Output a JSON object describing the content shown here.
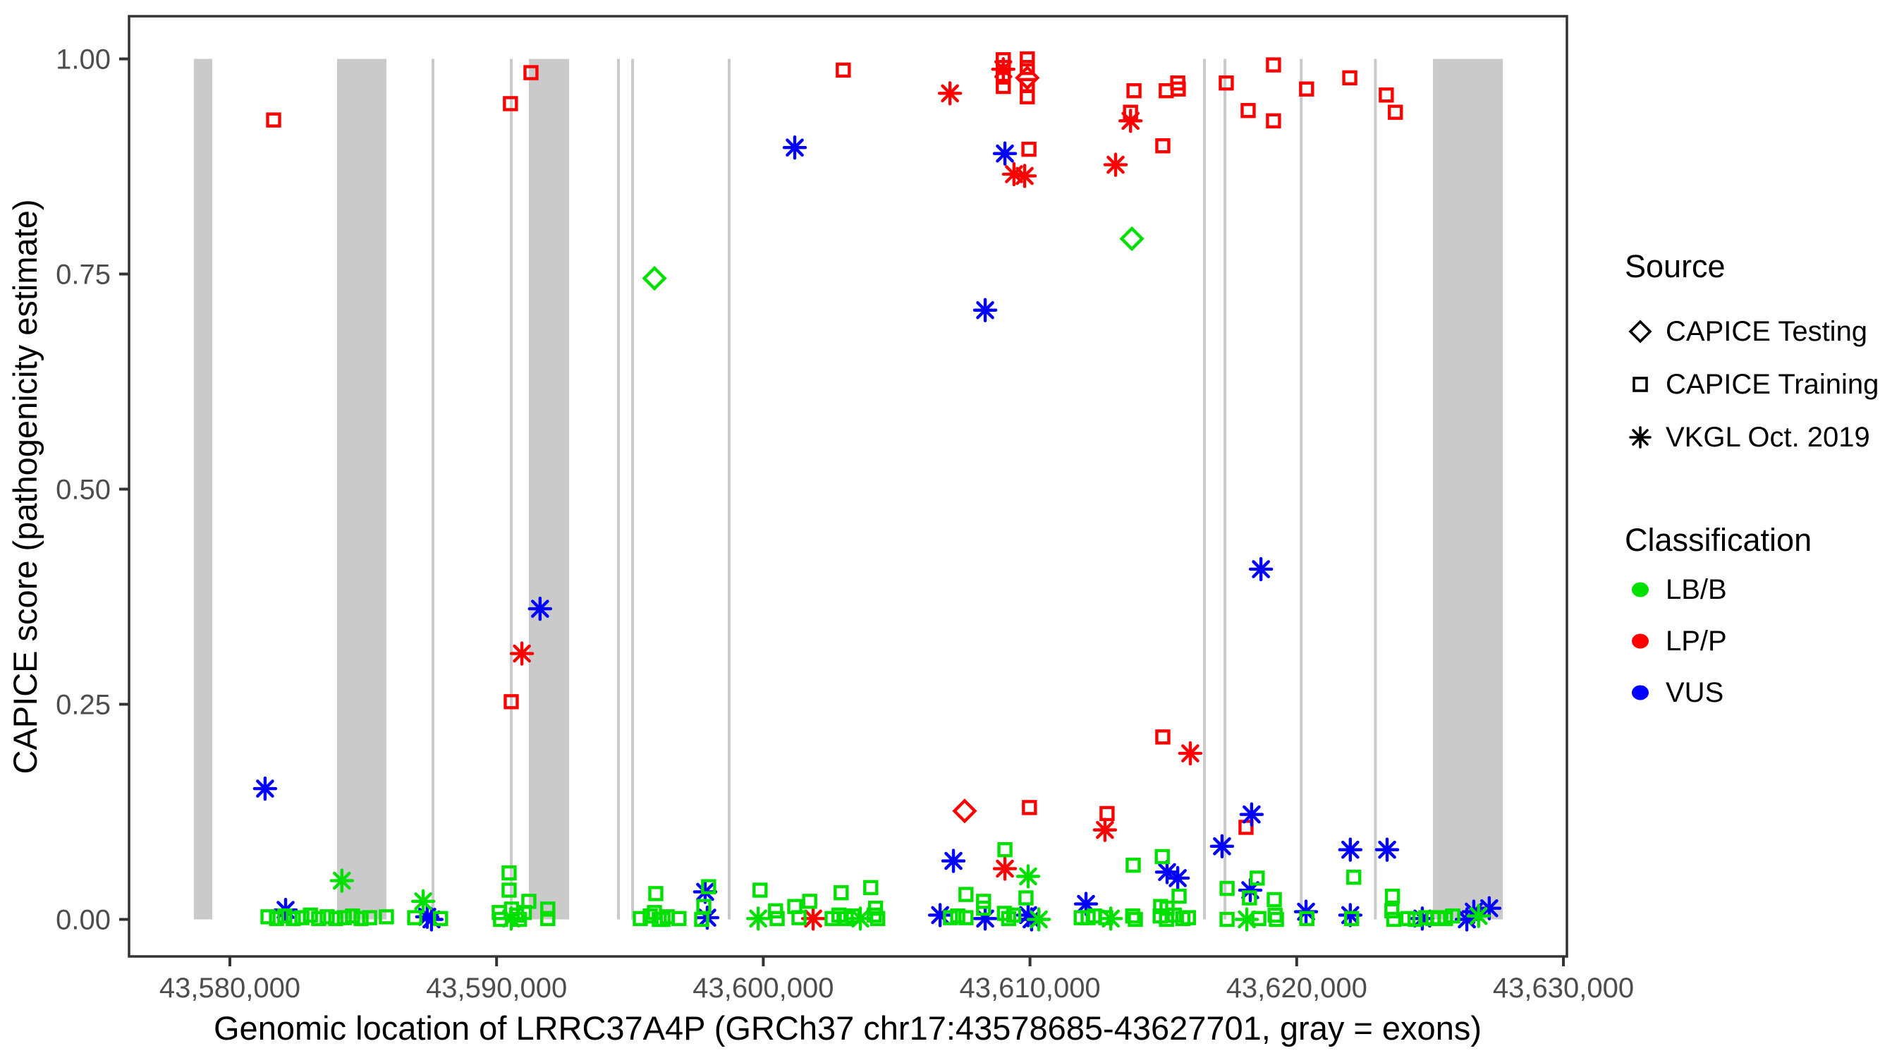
{
  "chart_data": {
    "type": "scatter",
    "title": "",
    "xlabel": "Genomic location of LRRC37A4P (GRCh37 chr17:43578685-43627701, gray = exons)",
    "ylabel": "CAPICE score (pathogenicity estimate)",
    "x_domain": [
      43576220,
      43630132
    ],
    "y_domain": [
      -0.043,
      1.0496
    ],
    "grid": "off",
    "x_ticks": [
      {
        "v": 43580000,
        "label": "43,580,000"
      },
      {
        "v": 43590000,
        "label": "43,590,000"
      },
      {
        "v": 43600000,
        "label": "43,600,000"
      },
      {
        "v": 43610000,
        "label": "43,610,000"
      },
      {
        "v": 43620000,
        "label": "43,620,000"
      },
      {
        "v": 43630000,
        "label": "43,630,000"
      }
    ],
    "y_ticks": [
      {
        "v": 0.0,
        "label": "0.00"
      },
      {
        "v": 0.25,
        "label": "0.25"
      },
      {
        "v": 0.5,
        "label": "0.50"
      },
      {
        "v": 0.75,
        "label": "0.75"
      },
      {
        "v": 1.0,
        "label": "1.00"
      }
    ],
    "exons_note": "gray vertical bands = exons, [start_bp, end_bp]",
    "exons": [
      [
        43578650,
        43579340
      ],
      [
        43584020,
        43585870
      ],
      [
        43587615,
        43587615
      ],
      [
        43590550,
        43590550
      ],
      [
        43591210,
        43592720
      ],
      [
        43594570,
        43594570
      ],
      [
        43595100,
        43595100
      ],
      [
        43598720,
        43598720
      ],
      [
        43616540,
        43616540
      ],
      [
        43617310,
        43617310
      ],
      [
        43620170,
        43620170
      ],
      [
        43622950,
        43622950
      ],
      [
        43625110,
        43627730
      ]
    ],
    "point_format": [
      "bp",
      "score",
      "classification_code",
      "source_code"
    ],
    "classification_codes": {
      "g": "LB/B",
      "r": "LP/P",
      "b": "VUS"
    },
    "source_codes": {
      "sq": "CAPICE Training",
      "di": "CAPICE Testing",
      "as": "VKGL Oct. 2019"
    },
    "points": [
      [
        43581640,
        0.929,
        "r",
        "sq"
      ],
      [
        43590520,
        0.948,
        "r",
        "sq"
      ],
      [
        43591290,
        0.984,
        "r",
        "sq"
      ],
      [
        43603000,
        0.987,
        "r",
        "sq"
      ],
      [
        43609000,
        0.999,
        "r",
        "sq"
      ],
      [
        43609000,
        0.99,
        "r",
        "sq"
      ],
      [
        43609000,
        0.979,
        "r",
        "sq"
      ],
      [
        43609000,
        0.968,
        "r",
        "sq"
      ],
      [
        43609900,
        1.0,
        "r",
        "sq"
      ],
      [
        43609900,
        0.99,
        "r",
        "sq"
      ],
      [
        43609900,
        0.969,
        "r",
        "sq"
      ],
      [
        43609900,
        0.956,
        "r",
        "sq"
      ],
      [
        43609960,
        0.895,
        "r",
        "sq"
      ],
      [
        43613900,
        0.963,
        "r",
        "sq"
      ],
      [
        43613770,
        0.938,
        "r",
        "sq"
      ],
      [
        43615110,
        0.963,
        "r",
        "sq"
      ],
      [
        43615540,
        0.972,
        "r",
        "sq"
      ],
      [
        43615560,
        0.965,
        "r",
        "sq"
      ],
      [
        43614980,
        0.899,
        "r",
        "sq"
      ],
      [
        43617360,
        0.972,
        "r",
        "sq"
      ],
      [
        43619130,
        0.993,
        "r",
        "sq"
      ],
      [
        43618180,
        0.94,
        "r",
        "sq"
      ],
      [
        43619130,
        0.928,
        "r",
        "sq"
      ],
      [
        43620370,
        0.965,
        "r",
        "sq"
      ],
      [
        43621990,
        0.978,
        "r",
        "sq"
      ],
      [
        43623360,
        0.958,
        "r",
        "sq"
      ],
      [
        43623700,
        0.938,
        "r",
        "sq"
      ],
      [
        43590550,
        0.253,
        "r",
        "sq"
      ],
      [
        43614980,
        0.212,
        "r",
        "sq"
      ],
      [
        43609980,
        0.13,
        "r",
        "sq"
      ],
      [
        43612890,
        0.123,
        "r",
        "sq"
      ],
      [
        43618100,
        0.107,
        "r",
        "sq"
      ],
      [
        43609900,
        0.978,
        "r",
        "di"
      ],
      [
        43607550,
        0.126,
        "r",
        "di"
      ],
      [
        43607000,
        0.96,
        "r",
        "as"
      ],
      [
        43609000,
        0.988,
        "r",
        "as"
      ],
      [
        43609400,
        0.866,
        "r",
        "as"
      ],
      [
        43609800,
        0.864,
        "r",
        "as"
      ],
      [
        43613210,
        0.877,
        "r",
        "as"
      ],
      [
        43613770,
        0.928,
        "r",
        "as"
      ],
      [
        43590950,
        0.309,
        "r",
        "as"
      ],
      [
        43616010,
        0.193,
        "r",
        "as"
      ],
      [
        43612810,
        0.104,
        "r",
        "as"
      ],
      [
        43609060,
        0.059,
        "r",
        "as"
      ],
      [
        43601870,
        0.001,
        "r",
        "as"
      ],
      [
        43581320,
        0.152,
        "b",
        "as"
      ],
      [
        43582090,
        0.011,
        "b",
        "as"
      ],
      [
        43587400,
        0.003,
        "b",
        "as"
      ],
      [
        43587560,
        0.0,
        "b",
        "as"
      ],
      [
        43591630,
        0.361,
        "b",
        "as"
      ],
      [
        43601180,
        0.897,
        "b",
        "as"
      ],
      [
        43609060,
        0.89,
        "b",
        "as"
      ],
      [
        43608320,
        0.708,
        "b",
        "as"
      ],
      [
        43597820,
        0.032,
        "b",
        "as"
      ],
      [
        43597900,
        0.002,
        "b",
        "as"
      ],
      [
        43607130,
        0.068,
        "b",
        "as"
      ],
      [
        43606630,
        0.005,
        "b",
        "as"
      ],
      [
        43608320,
        0.001,
        "b",
        "as"
      ],
      [
        43609930,
        0.005,
        "b",
        "as"
      ],
      [
        43610060,
        0.0,
        "b",
        "as"
      ],
      [
        43612100,
        0.018,
        "b",
        "as"
      ],
      [
        43615140,
        0.055,
        "b",
        "as"
      ],
      [
        43615540,
        0.048,
        "b",
        "as"
      ],
      [
        43617200,
        0.085,
        "b",
        "as"
      ],
      [
        43618310,
        0.122,
        "b",
        "as"
      ],
      [
        43618260,
        0.034,
        "b",
        "as"
      ],
      [
        43620350,
        0.009,
        "b",
        "as"
      ],
      [
        43622010,
        0.081,
        "b",
        "as"
      ],
      [
        43623390,
        0.081,
        "b",
        "as"
      ],
      [
        43622010,
        0.005,
        "b",
        "as"
      ],
      [
        43624710,
        0.001,
        "b",
        "as"
      ],
      [
        43626380,
        0.0,
        "b",
        "as"
      ],
      [
        43626640,
        0.009,
        "b",
        "as"
      ],
      [
        43627220,
        0.013,
        "b",
        "as"
      ],
      [
        43618660,
        0.407,
        "b",
        "as"
      ],
      [
        43584200,
        0.045,
        "g",
        "as"
      ],
      [
        43587250,
        0.021,
        "g",
        "as"
      ],
      [
        43590550,
        0.001,
        "g",
        "as"
      ],
      [
        43599810,
        0.001,
        "g",
        "as"
      ],
      [
        43609930,
        0.05,
        "g",
        "as"
      ],
      [
        43610330,
        0.0,
        "g",
        "as"
      ],
      [
        43613030,
        0.001,
        "g",
        "as"
      ],
      [
        43603640,
        0.001,
        "g",
        "as"
      ],
      [
        43618130,
        0.0,
        "g",
        "as"
      ],
      [
        43626820,
        0.004,
        "g",
        "as"
      ],
      [
        43595920,
        0.745,
        "g",
        "di"
      ],
      [
        43613820,
        0.791,
        "g",
        "di"
      ],
      [
        43581430,
        0.003,
        "g",
        "sq"
      ],
      [
        43581750,
        0.001,
        "g",
        "sq"
      ],
      [
        43582060,
        0.004,
        "g",
        "sq"
      ],
      [
        43582380,
        0.001,
        "g",
        "sq"
      ],
      [
        43582700,
        0.002,
        "g",
        "sq"
      ],
      [
        43583020,
        0.005,
        "g",
        "sq"
      ],
      [
        43583330,
        0.001,
        "g",
        "sq"
      ],
      [
        43583650,
        0.003,
        "g",
        "sq"
      ],
      [
        43583970,
        0.001,
        "g",
        "sq"
      ],
      [
        43584290,
        0.002,
        "g",
        "sq"
      ],
      [
        43584600,
        0.004,
        "g",
        "sq"
      ],
      [
        43584920,
        0.001,
        "g",
        "sq"
      ],
      [
        43585240,
        0.002,
        "g",
        "sq"
      ],
      [
        43585870,
        0.003,
        "g",
        "sq"
      ],
      [
        43586930,
        0.002,
        "g",
        "sq"
      ],
      [
        43587900,
        0.001,
        "g",
        "sq"
      ],
      [
        43590470,
        0.054,
        "g",
        "sq"
      ],
      [
        43590470,
        0.034,
        "g",
        "sq"
      ],
      [
        43591210,
        0.021,
        "g",
        "sq"
      ],
      [
        43590100,
        0.008,
        "g",
        "sq"
      ],
      [
        43590560,
        0.012,
        "g",
        "sq"
      ],
      [
        43590750,
        0.005,
        "g",
        "sq"
      ],
      [
        43591040,
        0.008,
        "g",
        "sq"
      ],
      [
        43590150,
        0.0,
        "g",
        "sq"
      ],
      [
        43590860,
        0.0,
        "g",
        "sq"
      ],
      [
        43591920,
        0.012,
        "g",
        "sq"
      ],
      [
        43591920,
        0.001,
        "g",
        "sq"
      ],
      [
        43595970,
        0.03,
        "g",
        "sq"
      ],
      [
        43595390,
        0.001,
        "g",
        "sq"
      ],
      [
        43595760,
        0.004,
        "g",
        "sq"
      ],
      [
        43595920,
        0.008,
        "g",
        "sq"
      ],
      [
        43596100,
        0.0,
        "g",
        "sq"
      ],
      [
        43596240,
        0.0,
        "g",
        "sq"
      ],
      [
        43596400,
        0.003,
        "g",
        "sq"
      ],
      [
        43596840,
        0.001,
        "g",
        "sq"
      ],
      [
        43597950,
        0.038,
        "g",
        "sq"
      ],
      [
        43597770,
        0.015,
        "g",
        "sq"
      ],
      [
        43597690,
        0.0,
        "g",
        "sq"
      ],
      [
        43599880,
        0.034,
        "g",
        "sq"
      ],
      [
        43600460,
        0.01,
        "g",
        "sq"
      ],
      [
        43600520,
        0.001,
        "g",
        "sq"
      ],
      [
        43601180,
        0.015,
        "g",
        "sq"
      ],
      [
        43601340,
        0.002,
        "g",
        "sq"
      ],
      [
        43601740,
        0.021,
        "g",
        "sq"
      ],
      [
        43602580,
        0.001,
        "g",
        "sq"
      ],
      [
        43602840,
        0.005,
        "g",
        "sq"
      ],
      [
        43603110,
        0.001,
        "g",
        "sq"
      ],
      [
        43603370,
        0.004,
        "g",
        "sq"
      ],
      [
        43602920,
        0.031,
        "g",
        "sq"
      ],
      [
        43604030,
        0.037,
        "g",
        "sq"
      ],
      [
        43604210,
        0.013,
        "g",
        "sq"
      ],
      [
        43604160,
        0.005,
        "g",
        "sq"
      ],
      [
        43604290,
        0.001,
        "g",
        "sq"
      ],
      [
        43607600,
        0.029,
        "g",
        "sq"
      ],
      [
        43608260,
        0.021,
        "g",
        "sq"
      ],
      [
        43608260,
        0.013,
        "g",
        "sq"
      ],
      [
        43607020,
        0.002,
        "g",
        "sq"
      ],
      [
        43607290,
        0.004,
        "g",
        "sq"
      ],
      [
        43607600,
        0.002,
        "g",
        "sq"
      ],
      [
        43609060,
        0.081,
        "g",
        "sq"
      ],
      [
        43609040,
        0.007,
        "g",
        "sq"
      ],
      [
        43609200,
        0.001,
        "g",
        "sq"
      ],
      [
        43609390,
        0.005,
        "g",
        "sq"
      ],
      [
        43609850,
        0.025,
        "g",
        "sq"
      ],
      [
        43611920,
        0.002,
        "g",
        "sq"
      ],
      [
        43612180,
        0.002,
        "g",
        "sq"
      ],
      [
        43612420,
        0.004,
        "g",
        "sq"
      ],
      [
        43612840,
        0.002,
        "g",
        "sq"
      ],
      [
        43613850,
        0.004,
        "g",
        "sq"
      ],
      [
        43613950,
        0.0,
        "g",
        "sq"
      ],
      [
        43613870,
        0.063,
        "g",
        "sq"
      ],
      [
        43614960,
        0.073,
        "g",
        "sq"
      ],
      [
        43614900,
        0.015,
        "g",
        "sq"
      ],
      [
        43615140,
        0.013,
        "g",
        "sq"
      ],
      [
        43615590,
        0.027,
        "g",
        "sq"
      ],
      [
        43614880,
        0.004,
        "g",
        "sq"
      ],
      [
        43615120,
        0.0,
        "g",
        "sq"
      ],
      [
        43615410,
        0.005,
        "g",
        "sq"
      ],
      [
        43615730,
        0.001,
        "g",
        "sq"
      ],
      [
        43615940,
        0.002,
        "g",
        "sq"
      ],
      [
        43617390,
        0.036,
        "g",
        "sq"
      ],
      [
        43618520,
        0.048,
        "g",
        "sq"
      ],
      [
        43618230,
        0.025,
        "g",
        "sq"
      ],
      [
        43619160,
        0.023,
        "g",
        "sq"
      ],
      [
        43622140,
        0.049,
        "g",
        "sq"
      ],
      [
        43617390,
        0.0,
        "g",
        "sq"
      ],
      [
        43618580,
        0.001,
        "g",
        "sq"
      ],
      [
        43619190,
        0.005,
        "g",
        "sq"
      ],
      [
        43619240,
        0.0,
        "g",
        "sq"
      ],
      [
        43620380,
        0.001,
        "g",
        "sq"
      ],
      [
        43622060,
        0.001,
        "g",
        "sq"
      ],
      [
        43623590,
        0.027,
        "g",
        "sq"
      ],
      [
        43623570,
        0.01,
        "g",
        "sq"
      ],
      [
        43623640,
        0.0,
        "g",
        "sq"
      ],
      [
        43624170,
        0.001,
        "g",
        "sq"
      ],
      [
        43624440,
        0.0,
        "g",
        "sq"
      ],
      [
        43624840,
        0.002,
        "g",
        "sq"
      ],
      [
        43625110,
        0.001,
        "g",
        "sq"
      ],
      [
        43625320,
        0.002,
        "g",
        "sq"
      ],
      [
        43625580,
        0.001,
        "g",
        "sq"
      ],
      [
        43625850,
        0.004,
        "g",
        "sq"
      ]
    ],
    "colors": {
      "LB/B": "#00e000",
      "LP/P": "#ff0000",
      "VUS": "#0000ff",
      "exon_gray": "#cacaca",
      "axis": "#333333",
      "tick_text": "#4d4d4d"
    },
    "legend_position": "right"
  },
  "legend": {
    "source": {
      "title": "Source",
      "items": [
        {
          "label": "CAPICE Testing",
          "symbol": "diamond"
        },
        {
          "label": "CAPICE Training",
          "symbol": "square"
        },
        {
          "label": "VKGL Oct. 2019",
          "symbol": "asterisk"
        }
      ]
    },
    "classification": {
      "title": "Classification",
      "items": [
        {
          "label": "LB/B",
          "color": "#00e000"
        },
        {
          "label": "LP/P",
          "color": "#ff0000"
        },
        {
          "label": "VUS",
          "color": "#0000ff"
        }
      ]
    }
  }
}
